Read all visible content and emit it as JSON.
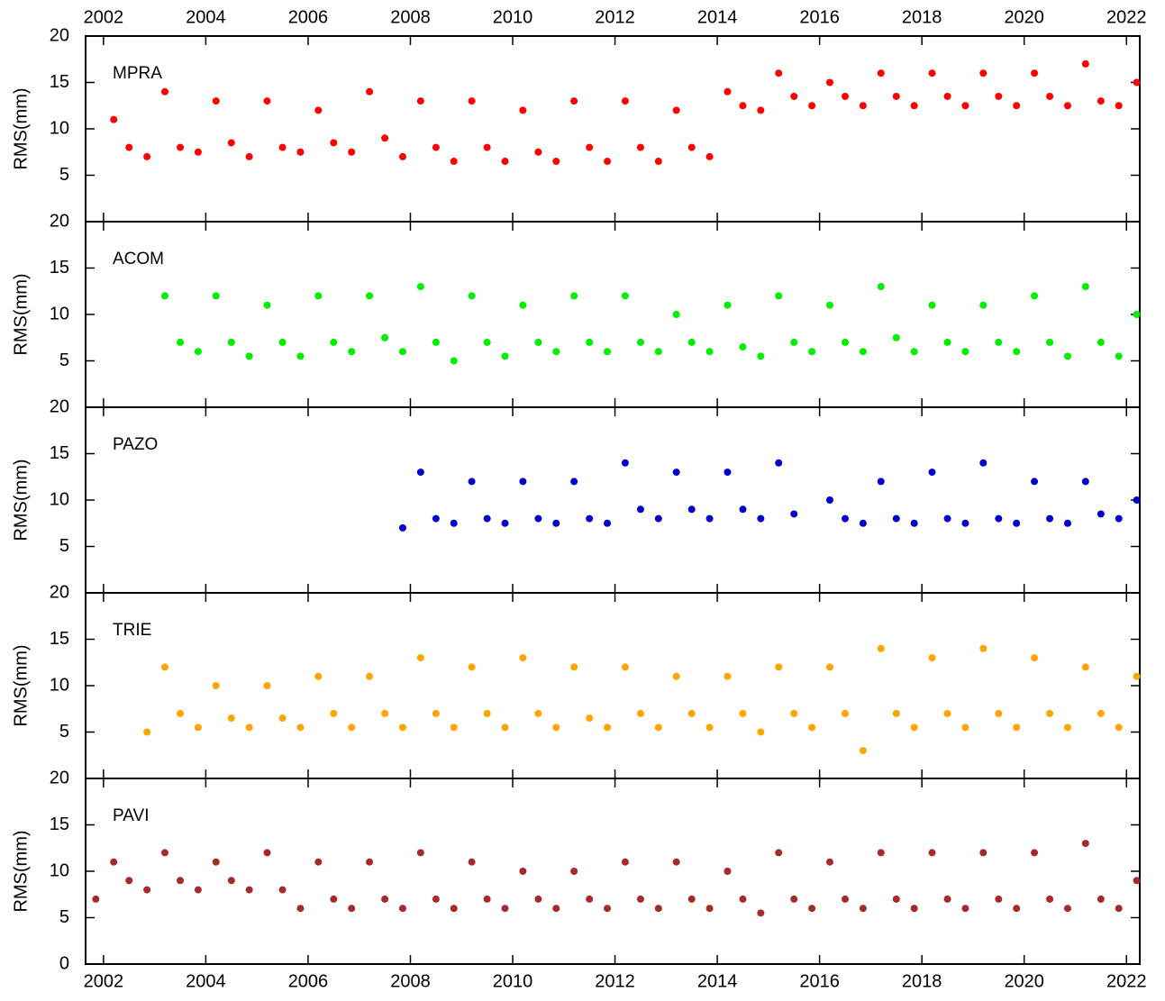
{
  "chart_data": [
    {
      "type": "scatter",
      "label": "MPRA",
      "ylabel": "RMS(mm)",
      "color": "#ff0000",
      "xlim": [
        2001.65,
        2022.26
      ],
      "ylim": [
        0,
        20
      ],
      "yticks": [
        5,
        10,
        15,
        20
      ],
      "xticks": [
        2002,
        2004,
        2006,
        2008,
        2010,
        2012,
        2014,
        2016,
        2018,
        2020,
        2022
      ],
      "x": [
        2002.2,
        2002.5,
        2002.85,
        2003.2,
        2003.5,
        2003.85,
        2004.2,
        2004.5,
        2004.85,
        2005.2,
        2005.5,
        2005.85,
        2006.2,
        2006.5,
        2006.85,
        2007.2,
        2007.5,
        2007.85,
        2008.2,
        2008.5,
        2008.85,
        2009.2,
        2009.5,
        2009.85,
        2010.2,
        2010.5,
        2010.85,
        2011.2,
        2011.5,
        2011.85,
        2012.2,
        2012.5,
        2012.85,
        2013.2,
        2013.5,
        2013.85,
        2014.2,
        2014.5,
        2014.85,
        2015.2,
        2015.5,
        2015.85,
        2016.2,
        2016.5,
        2016.85,
        2017.2,
        2017.5,
        2017.85,
        2018.2,
        2018.5,
        2018.85,
        2019.2,
        2019.5,
        2019.85,
        2020.2,
        2020.5,
        2020.85,
        2021.2,
        2021.5,
        2021.85,
        2022.2
      ],
      "values": [
        11,
        8,
        7,
        14,
        8,
        7.5,
        13,
        8.5,
        7,
        13,
        8,
        7.5,
        12,
        8.5,
        7.5,
        14,
        9,
        7,
        13,
        8,
        6.5,
        13,
        8,
        6.5,
        12,
        7.5,
        6.5,
        13,
        8,
        6.5,
        13,
        8,
        6.5,
        12,
        8,
        7,
        14,
        12.5,
        12,
        16,
        13.5,
        12.5,
        15,
        13.5,
        12.5,
        16,
        13.5,
        12.5,
        16,
        13.5,
        12.5,
        16,
        13.5,
        12.5,
        16,
        13.5,
        12.5,
        17,
        13,
        12.5,
        15
      ]
    },
    {
      "type": "scatter",
      "label": "ACOM",
      "ylabel": "RMS(mm)",
      "color": "#00ee00",
      "xlim": [
        2001.65,
        2022.26
      ],
      "ylim": [
        0,
        20
      ],
      "yticks": [
        5,
        10,
        15,
        20
      ],
      "xticks": [
        2002,
        2004,
        2006,
        2008,
        2010,
        2012,
        2014,
        2016,
        2018,
        2020,
        2022
      ],
      "x": [
        2003.2,
        2003.5,
        2003.85,
        2004.2,
        2004.5,
        2004.85,
        2005.2,
        2005.5,
        2005.85,
        2006.2,
        2006.5,
        2006.85,
        2007.2,
        2007.5,
        2007.85,
        2008.2,
        2008.5,
        2008.85,
        2009.2,
        2009.5,
        2009.85,
        2010.2,
        2010.5,
        2010.85,
        2011.2,
        2011.5,
        2011.85,
        2012.2,
        2012.5,
        2012.85,
        2013.2,
        2013.5,
        2013.85,
        2014.2,
        2014.5,
        2014.85,
        2015.2,
        2015.5,
        2015.85,
        2016.2,
        2016.5,
        2016.85,
        2017.2,
        2017.5,
        2017.85,
        2018.2,
        2018.5,
        2018.85,
        2019.2,
        2019.5,
        2019.85,
        2020.2,
        2020.5,
        2020.85,
        2021.2,
        2021.5,
        2021.85,
        2022.2
      ],
      "values": [
        12,
        7,
        6,
        12,
        7,
        5.5,
        11,
        7,
        5.5,
        12,
        7,
        6,
        12,
        7.5,
        6,
        13,
        7,
        5,
        12,
        7,
        5.5,
        11,
        7,
        6,
        12,
        7,
        6,
        12,
        7,
        6,
        10,
        7,
        6,
        11,
        6.5,
        5.5,
        12,
        7,
        6,
        11,
        7,
        6,
        13,
        7.5,
        6,
        11,
        7,
        6,
        11,
        7,
        6,
        12,
        7,
        5.5,
        13,
        7,
        5.5,
        10
      ]
    },
    {
      "type": "scatter",
      "label": "PAZO",
      "ylabel": "RMS(mm)",
      "color": "#0000cc",
      "xlim": [
        2001.65,
        2022.26
      ],
      "ylim": [
        0,
        20
      ],
      "yticks": [
        5,
        10,
        15,
        20
      ],
      "xticks": [
        2002,
        2004,
        2006,
        2008,
        2010,
        2012,
        2014,
        2016,
        2018,
        2020,
        2022
      ],
      "x": [
        2007.85,
        2008.2,
        2008.5,
        2008.85,
        2009.2,
        2009.5,
        2009.85,
        2010.2,
        2010.5,
        2010.85,
        2011.2,
        2011.5,
        2011.85,
        2012.2,
        2012.5,
        2012.85,
        2013.2,
        2013.5,
        2013.85,
        2014.2,
        2014.5,
        2014.85,
        2015.2,
        2015.5,
        2015.85,
        2016.2,
        2016.5,
        2016.85,
        2017.2,
        2017.5,
        2017.85,
        2018.2,
        2018.5,
        2018.85,
        2019.2,
        2019.5,
        2019.85,
        2020.2,
        2020.5,
        2020.85,
        2021.2,
        2021.5,
        2021.85,
        2022.2
      ],
      "values": [
        7,
        13,
        8,
        7.5,
        12,
        8,
        7.5,
        12,
        8,
        7.5,
        12,
        8,
        7.5,
        14,
        9,
        8,
        13,
        9,
        8,
        13,
        9,
        8,
        14,
        8.5,
        null,
        10,
        8,
        7.5,
        12,
        8,
        7.5,
        13,
        8,
        7.5,
        14,
        8,
        7.5,
        12,
        8,
        7.5,
        12,
        8.5,
        8,
        10
      ]
    },
    {
      "type": "scatter",
      "label": "TRIE",
      "ylabel": "RMS(mm)",
      "color": "#ffa500",
      "xlim": [
        2001.65,
        2022.26
      ],
      "ylim": [
        0,
        20
      ],
      "yticks": [
        5,
        10,
        15,
        20
      ],
      "xticks": [
        2002,
        2004,
        2006,
        2008,
        2010,
        2012,
        2014,
        2016,
        2018,
        2020,
        2022
      ],
      "x": [
        2002.85,
        2003.2,
        2003.5,
        2003.85,
        2004.2,
        2004.5,
        2004.85,
        2005.2,
        2005.5,
        2005.85,
        2006.2,
        2006.5,
        2006.85,
        2007.2,
        2007.5,
        2007.85,
        2008.2,
        2008.5,
        2008.85,
        2009.2,
        2009.5,
        2009.85,
        2010.2,
        2010.5,
        2010.85,
        2011.2,
        2011.5,
        2011.85,
        2012.2,
        2012.5,
        2012.85,
        2013.2,
        2013.5,
        2013.85,
        2014.2,
        2014.5,
        2014.85,
        2015.2,
        2015.5,
        2015.85,
        2016.2,
        2016.5,
        2016.85,
        2017.2,
        2017.5,
        2017.85,
        2018.2,
        2018.5,
        2018.85,
        2019.2,
        2019.5,
        2019.85,
        2020.2,
        2020.5,
        2020.85,
        2021.2,
        2021.5,
        2021.85,
        2022.2
      ],
      "values": [
        5,
        12,
        7,
        5.5,
        10,
        6.5,
        5.5,
        10,
        6.5,
        5.5,
        11,
        7,
        5.5,
        11,
        7,
        5.5,
        13,
        7,
        5.5,
        12,
        7,
        5.5,
        13,
        7,
        5.5,
        12,
        6.5,
        5.5,
        12,
        7,
        5.5,
        11,
        7,
        5.5,
        11,
        7,
        5,
        12,
        7,
        5.5,
        12,
        7,
        3,
        14,
        7,
        5.5,
        13,
        7,
        5.5,
        14,
        7,
        5.5,
        13,
        7,
        5.5,
        12,
        7,
        5.5,
        11
      ]
    },
    {
      "type": "scatter",
      "label": "PAVI",
      "ylabel": "RMS(mm)",
      "color": "#a52a2a",
      "xlim": [
        2001.65,
        2022.26
      ],
      "ylim": [
        0,
        20
      ],
      "yticks": [
        0,
        5,
        10,
        15,
        20
      ],
      "xticks": [
        2002,
        2004,
        2006,
        2008,
        2010,
        2012,
        2014,
        2016,
        2018,
        2020,
        2022
      ],
      "x": [
        2001.85,
        2002.2,
        2002.5,
        2002.85,
        2003.2,
        2003.5,
        2003.85,
        2004.2,
        2004.5,
        2004.85,
        2005.2,
        2005.5,
        2005.85,
        2006.2,
        2006.5,
        2006.85,
        2007.2,
        2007.5,
        2007.85,
        2008.2,
        2008.5,
        2008.85,
        2009.2,
        2009.5,
        2009.85,
        2010.2,
        2010.5,
        2010.85,
        2011.2,
        2011.5,
        2011.85,
        2012.2,
        2012.5,
        2012.85,
        2013.2,
        2013.5,
        2013.85,
        2014.2,
        2014.5,
        2014.85,
        2015.2,
        2015.5,
        2015.85,
        2016.2,
        2016.5,
        2016.85,
        2017.2,
        2017.5,
        2017.85,
        2018.2,
        2018.5,
        2018.85,
        2019.2,
        2019.5,
        2019.85,
        2020.2,
        2020.5,
        2020.85,
        2021.2,
        2021.5,
        2021.85,
        2022.2
      ],
      "values": [
        7,
        11,
        9,
        8,
        12,
        9,
        8,
        11,
        9,
        8,
        12,
        8,
        6,
        11,
        7,
        6,
        11,
        7,
        6,
        12,
        7,
        6,
        11,
        7,
        6,
        10,
        7,
        6,
        10,
        7,
        6,
        11,
        7,
        6,
        11,
        7,
        6,
        10,
        7,
        5.5,
        12,
        7,
        6,
        11,
        7,
        6,
        12,
        7,
        6,
        12,
        7,
        6,
        12,
        7,
        6,
        12,
        7,
        6,
        13,
        7,
        6,
        9
      ]
    }
  ]
}
